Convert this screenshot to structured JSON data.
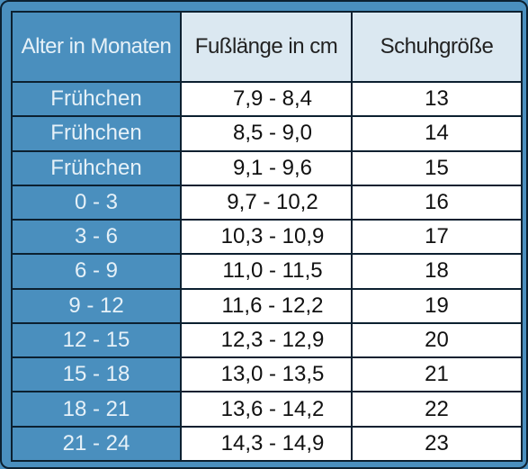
{
  "table": {
    "headers": {
      "age": "Alter in Monaten",
      "foot_length": "Fußlänge in cm",
      "shoe_size": "Schuhgröße"
    },
    "rows": [
      {
        "age": "Frühchen",
        "foot_length": "7,9 - 8,4",
        "shoe_size": "13"
      },
      {
        "age": "Frühchen",
        "foot_length": "8,5 - 9,0",
        "shoe_size": "14"
      },
      {
        "age": "Frühchen",
        "foot_length": "9,1 - 9,6",
        "shoe_size": "15"
      },
      {
        "age": "0 - 3",
        "foot_length": "9,7 - 10,2",
        "shoe_size": "16"
      },
      {
        "age": "3 - 6",
        "foot_length": "10,3 - 10,9",
        "shoe_size": "17"
      },
      {
        "age": "6 - 9",
        "foot_length": "11,0 - 11,5",
        "shoe_size": "18"
      },
      {
        "age": "9 - 12",
        "foot_length": "11,6 - 12,2",
        "shoe_size": "19"
      },
      {
        "age": "12 - 15",
        "foot_length": "12,3 - 12,9",
        "shoe_size": "20"
      },
      {
        "age": "15 - 18",
        "foot_length": "13,0 - 13,5",
        "shoe_size": "21"
      },
      {
        "age": "18 - 21",
        "foot_length": "13,6 - 14,2",
        "shoe_size": "22"
      },
      {
        "age": "21 - 24",
        "foot_length": "14,3 - 14,9",
        "shoe_size": "23"
      }
    ]
  },
  "colors": {
    "frame_blue": "#4a8fbe",
    "header_light": "#dbe8f1",
    "cell_white": "#ffffff",
    "border_dark": "#0c2030",
    "age_text": "#e6f1f8"
  }
}
